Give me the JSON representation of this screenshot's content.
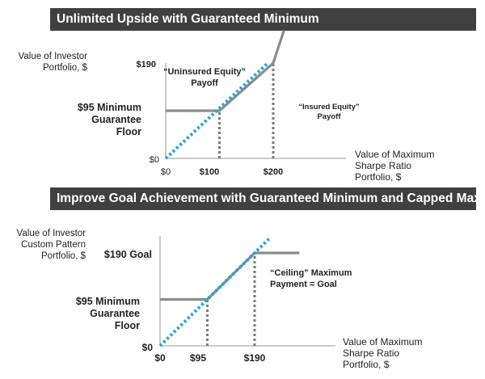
{
  "charts_meta": [
    {
      "banner": "Unlimited Upside with Guaranteed Minimum",
      "ylabel": [
        "Value of Investor",
        "Portfolio, $"
      ],
      "xlabel": [
        "Value of Maximum",
        "Sharpe Ratio",
        "Portfolio, $"
      ],
      "y_ticks": [
        "$190",
        "$0"
      ],
      "x_ticks": [
        "$0",
        "$100",
        "$200"
      ],
      "floor_label": [
        "$95 Minimum",
        "Guarantee",
        "Floor"
      ],
      "uninsured_label": [
        "“Uninsured Equity”",
        "Payoff"
      ],
      "insured_label": [
        "“Insured Equity”",
        "Payoff"
      ]
    },
    {
      "banner": "Improve Goal Achievement with Guaranteed Minimum and Capped Maximum",
      "ylabel": [
        "Value of Investor",
        "Custom Pattern",
        "Portfolio, $"
      ],
      "xlabel": [
        "Value of Maximum",
        "Sharpe Ratio",
        "Portfolio, $"
      ],
      "y_ticks": [
        "$190 Goal",
        "$0"
      ],
      "x_ticks": [
        "$0",
        "$95",
        "$190"
      ],
      "floor_label": [
        "$95 Minimum",
        "Guarantee",
        "Floor"
      ],
      "ceiling_label": [
        "“Ceiling” Maximum",
        "Payment = Goal"
      ]
    }
  ],
  "colors": {
    "payoff": "#8c8c8c",
    "diagonal": "#2aa6cf",
    "dotted": "#7a7a7a",
    "banner": "#404040"
  },
  "chart_data": [
    {
      "type": "line",
      "title": "Unlimited Upside with Guaranteed Minimum",
      "xlabel": "Value of Maximum Sharpe Ratio Portfolio, $",
      "ylabel": "Value of Investor Portfolio, $",
      "x_ticks": [
        0,
        100,
        200
      ],
      "y_ticks": [
        0,
        190
      ],
      "series": [
        {
          "name": "“Insured Equity” Payoff",
          "style": "solid",
          "x": [
            0,
            100,
            200,
            220
          ],
          "y": [
            95,
            95,
            190,
            255
          ]
        },
        {
          "name": "“Uninsured Equity” Payoff",
          "style": "dotted",
          "x": [
            0,
            190
          ],
          "y": [
            0,
            190
          ]
        }
      ],
      "reference_lines": [
        {
          "x": 100,
          "y_from": 0,
          "y_to": 95
        },
        {
          "x": 200,
          "y_from": 0,
          "y_to": 190
        }
      ]
    },
    {
      "type": "line",
      "title": "Improve Goal Achievement with Guaranteed Minimum and Capped Maximum",
      "xlabel": "Value of Maximum Sharpe Ratio Portfolio, $",
      "ylabel": "Value of Investor Custom Pattern Portfolio, $",
      "x_ticks": [
        0,
        95,
        190
      ],
      "y_ticks": [
        0,
        190
      ],
      "series": [
        {
          "name": "Capped payoff",
          "style": "solid",
          "x": [
            0,
            95,
            190,
            280
          ],
          "y": [
            95,
            95,
            190,
            190
          ]
        },
        {
          "name": "Diagonal",
          "style": "dotted",
          "x": [
            0,
            220
          ],
          "y": [
            0,
            220
          ]
        }
      ],
      "reference_lines": [
        {
          "x": 95,
          "y_from": 0,
          "y_to": 95
        },
        {
          "x": 190,
          "y_from": 0,
          "y_to": 190
        }
      ]
    }
  ]
}
